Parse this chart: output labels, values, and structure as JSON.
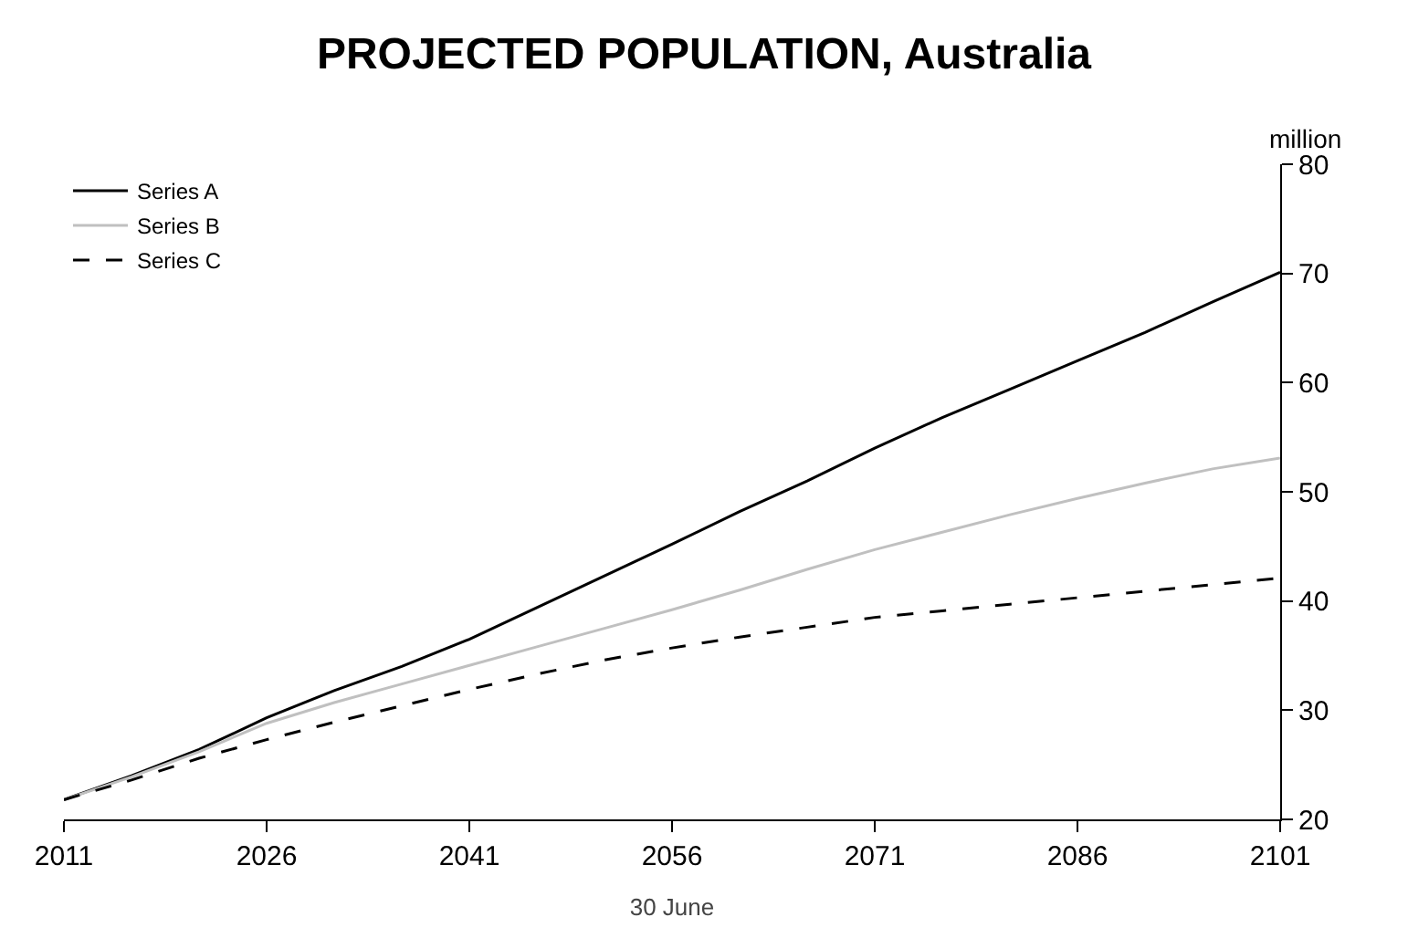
{
  "chart_data": {
    "type": "line",
    "title": "PROJECTED POPULATION, Australia",
    "xlabel": "30 June",
    "ylabel": "million",
    "x": [
      2011,
      2016,
      2021,
      2026,
      2031,
      2036,
      2041,
      2046,
      2051,
      2056,
      2061,
      2066,
      2071,
      2076,
      2081,
      2086,
      2091,
      2096,
      2101
    ],
    "series": [
      {
        "name": "Series A",
        "color": "#000000",
        "line_style": "solid",
        "values": [
          21.8,
          24.0,
          26.4,
          29.3,
          31.8,
          34.0,
          36.5,
          39.4,
          42.3,
          45.2,
          48.2,
          51.0,
          54.0,
          56.8,
          59.4,
          62.0,
          64.6,
          67.4,
          70.1
        ]
      },
      {
        "name": "Series B",
        "color": "#c0c0c0",
        "line_style": "solid",
        "values": [
          21.8,
          23.9,
          26.2,
          28.8,
          30.7,
          32.4,
          34.1,
          35.8,
          37.5,
          39.2,
          41.0,
          42.9,
          44.7,
          46.3,
          47.9,
          49.4,
          50.8,
          52.1,
          53.1
        ]
      },
      {
        "name": "Series C",
        "color": "#000000",
        "line_style": "dashed",
        "values": [
          21.8,
          23.6,
          25.6,
          27.3,
          28.9,
          30.4,
          31.9,
          33.3,
          34.6,
          35.7,
          36.7,
          37.6,
          38.5,
          39.1,
          39.7,
          40.3,
          40.9,
          41.5,
          42.1
        ]
      }
    ],
    "xlim": [
      2011,
      2101
    ],
    "xticks": [
      2011,
      2026,
      2041,
      2056,
      2071,
      2086,
      2101
    ],
    "ylim": [
      20,
      80
    ],
    "yticks": [
      20,
      30,
      40,
      50,
      60,
      70,
      80
    ],
    "legend": "top left",
    "marker": "none"
  }
}
